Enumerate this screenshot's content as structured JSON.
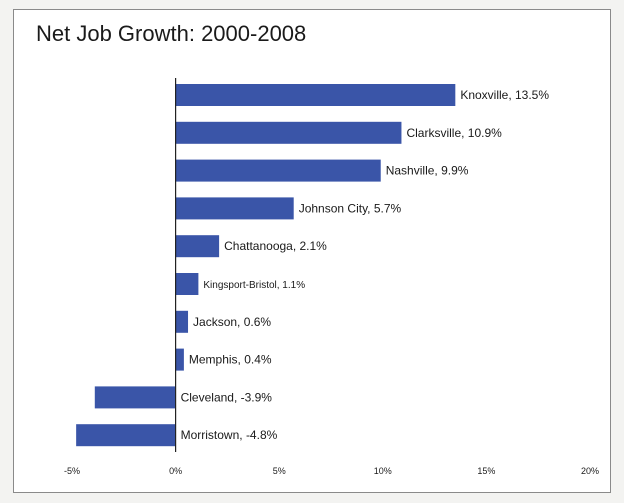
{
  "chart_data": {
    "type": "bar",
    "orientation": "horizontal",
    "title": "Net Job Growth: 2000-2008",
    "xlabel": "",
    "ylabel": "",
    "xlim": [
      -5,
      20
    ],
    "x_ticks": [
      "-5%",
      "0%",
      "5%",
      "10%",
      "15%",
      "20%"
    ],
    "x_tick_values": [
      -5,
      0,
      5,
      10,
      15,
      20
    ],
    "grid": false,
    "bar_color": "#3a55a8",
    "categories": [
      "Knoxville",
      "Clarksville",
      "Nashville",
      "Johnson City",
      "Chattanooga",
      "Kingsport-Bristol",
      "Jackson",
      "Memphis",
      "Cleveland",
      "Morristown"
    ],
    "values": [
      13.5,
      10.9,
      9.9,
      5.7,
      2.1,
      1.1,
      0.6,
      0.4,
      -3.9,
      -4.8
    ],
    "labels": [
      "Knoxville, 13.5%",
      "Clarksville, 10.9%",
      "Nashville, 9.9%",
      "Johnson City, 5.7%",
      "Chattanooga, 2.1%",
      "Kingsport-Bristol, 1.1%",
      "Jackson, 0.6%",
      "Memphis, 0.4%",
      "Cleveland, -3.9%",
      "Morristown, -4.8%"
    ]
  }
}
